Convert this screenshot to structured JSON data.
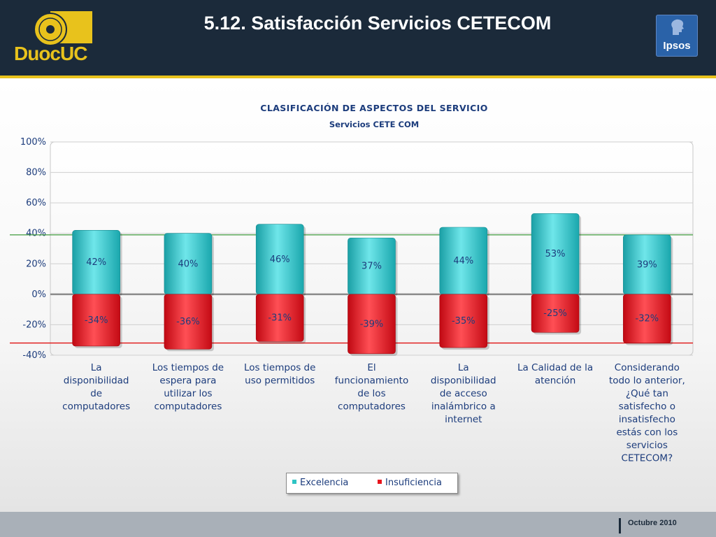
{
  "slide": {
    "title": "5.12. Satisfacción Servicios CETECOM",
    "footer_date": "Octubre 2010",
    "logo_left_text": "DuocUC",
    "logo_right_text": "Ipsos"
  },
  "colors": {
    "header_bg": "#1b2a3a",
    "accent_yellow": "#e8c21c",
    "excelencia": "#2ec4c4",
    "insuficiencia": "#e8141c",
    "title_blue": "#1c3c7c"
  },
  "chart_data": {
    "type": "bar",
    "title": "CLASIFICACIÓN DE ASPECTOS DEL SERVICIO",
    "subtitle": "Servicios CETE COM",
    "categories": [
      [
        "La",
        "disponibilidad",
        "de",
        "computadores"
      ],
      [
        "Los tiempos de",
        "espera para",
        "utilizar los",
        "computadores"
      ],
      [
        "Los tiempos de",
        "uso permitidos"
      ],
      [
        "El",
        "funcionamiento",
        "de los",
        "computadores"
      ],
      [
        "La",
        "disponibilidad",
        "de acceso",
        "inalámbrico a",
        "internet"
      ],
      [
        "La Calidad de la",
        "atención"
      ],
      [
        "Considerando",
        "todo lo anterior,",
        "¿Qué tan",
        "satisfecho o",
        "insatisfecho",
        "estás con los",
        "servicios",
        "CETECOM?"
      ]
    ],
    "series": [
      {
        "name": "Excelencia",
        "values": [
          42,
          40,
          46,
          37,
          44,
          53,
          39
        ]
      },
      {
        "name": "Insuficiencia",
        "values": [
          -34,
          -36,
          -31,
          -39,
          -35,
          -25,
          -32
        ]
      }
    ],
    "value_labels": [
      [
        "42%",
        "40%",
        "46%",
        "37%",
        "44%",
        "53%",
        "39%"
      ],
      [
        "-34%",
        "-36%",
        "-31%",
        "-39%",
        "-35%",
        "-25%",
        "-32%"
      ]
    ],
    "ylim": [
      -40,
      100
    ],
    "yticks": [
      100,
      80,
      60,
      40,
      20,
      0,
      -20,
      -40
    ],
    "ytick_labels": [
      "100%",
      "80%",
      "60%",
      "40%",
      "20%",
      "0%",
      "-20%",
      "-40%"
    ],
    "reference_lines": [
      39,
      -32
    ],
    "grid": true,
    "legend": "bottom"
  }
}
